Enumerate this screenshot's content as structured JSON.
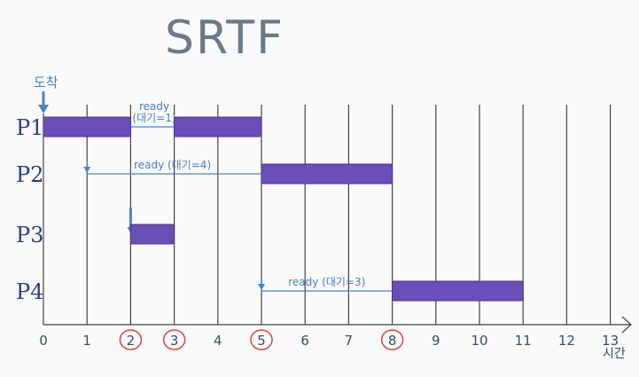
{
  "diagram": {
    "title": "SRTF",
    "arrival_label": "도착",
    "time_unit_label": "시간",
    "time_ticks": [
      "0",
      "1",
      "2",
      "3",
      "4",
      "5",
      "6",
      "7",
      "8",
      "9",
      "10",
      "11",
      "12",
      "13"
    ],
    "highlighted_times": [
      2,
      3,
      5,
      8
    ],
    "processes": [
      {
        "name": "P1",
        "arrival": 0,
        "run_segments": [
          [
            0,
            2
          ],
          [
            3,
            5
          ]
        ],
        "waits": [
          {
            "from": 2,
            "to": 3,
            "text_top": "ready",
            "text_bottom": "(대기=1)"
          }
        ]
      },
      {
        "name": "P2",
        "arrival": 1,
        "run_segments": [
          [
            5,
            8
          ]
        ],
        "waits": [
          {
            "from": 1,
            "to": 5,
            "text": "ready (대기=4)"
          }
        ]
      },
      {
        "name": "P3",
        "arrival": 2,
        "run_segments": [
          [
            2,
            3
          ]
        ],
        "waits": []
      },
      {
        "name": "P4",
        "arrival": 5,
        "run_segments": [
          [
            8,
            11
          ]
        ],
        "waits": [
          {
            "from": 5,
            "to": 8,
            "text": "ready (대기=3)"
          }
        ]
      }
    ]
  },
  "colors": {
    "bar": "#6a4fb8",
    "bar_edge": "#4a3690",
    "grid": "#444444",
    "arrow": "#4a82cc",
    "circle": "#e0453a"
  }
}
